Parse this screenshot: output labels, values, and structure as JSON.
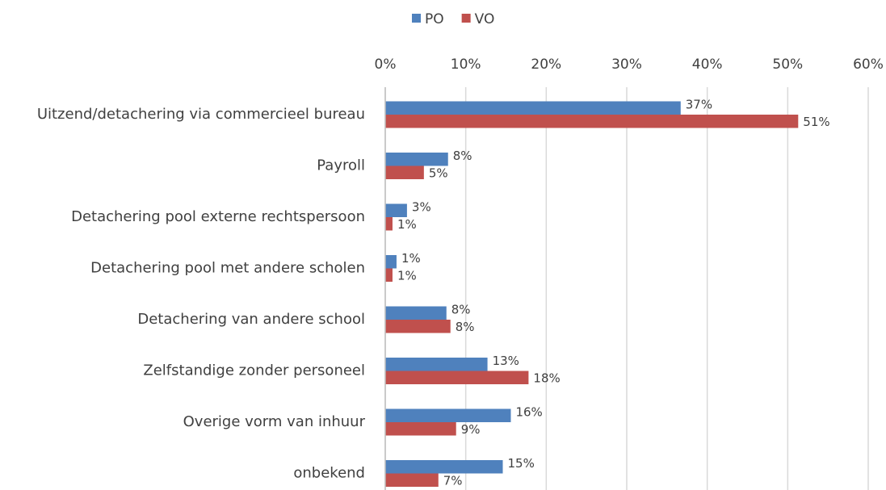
{
  "chart_data": {
    "type": "hbar",
    "categories": [
      "Uitzend/detachering via commercieel bureau",
      "Payroll",
      "Detachering pool externe rechtspersoon",
      "Detachering pool met andere scholen",
      "Detachering van andere school",
      "Zelfstandige zonder personeel",
      "Overige vorm van inhuur",
      "onbekend"
    ],
    "series": [
      {
        "name": "PO",
        "color": "#4f81bd",
        "values": [
          36.7,
          7.8,
          2.7,
          1.4,
          7.6,
          12.7,
          15.6,
          14.6
        ],
        "value_labels": [
          "37%",
          "8%",
          "3%",
          "1%",
          "8%",
          "13%",
          "16%",
          "15%"
        ]
      },
      {
        "name": "VO",
        "color": "#c0504d",
        "values": [
          51.3,
          4.8,
          0.9,
          0.9,
          8.1,
          17.8,
          8.8,
          6.6
        ],
        "value_labels": [
          "51%",
          "5%",
          "1%",
          "1%",
          "8%",
          "18%",
          "9%",
          "7%"
        ]
      }
    ],
    "xlim": [
      0,
      60
    ],
    "xticks": [
      {
        "value": 0,
        "label": "0%"
      },
      {
        "value": 10,
        "label": "10%"
      },
      {
        "value": 20,
        "label": "20%"
      },
      {
        "value": 30,
        "label": "30%"
      },
      {
        "value": 40,
        "label": "40%"
      },
      {
        "value": 50,
        "label": "50%"
      },
      {
        "value": 60,
        "label": "60%"
      }
    ],
    "grid": true,
    "legend": "top"
  }
}
